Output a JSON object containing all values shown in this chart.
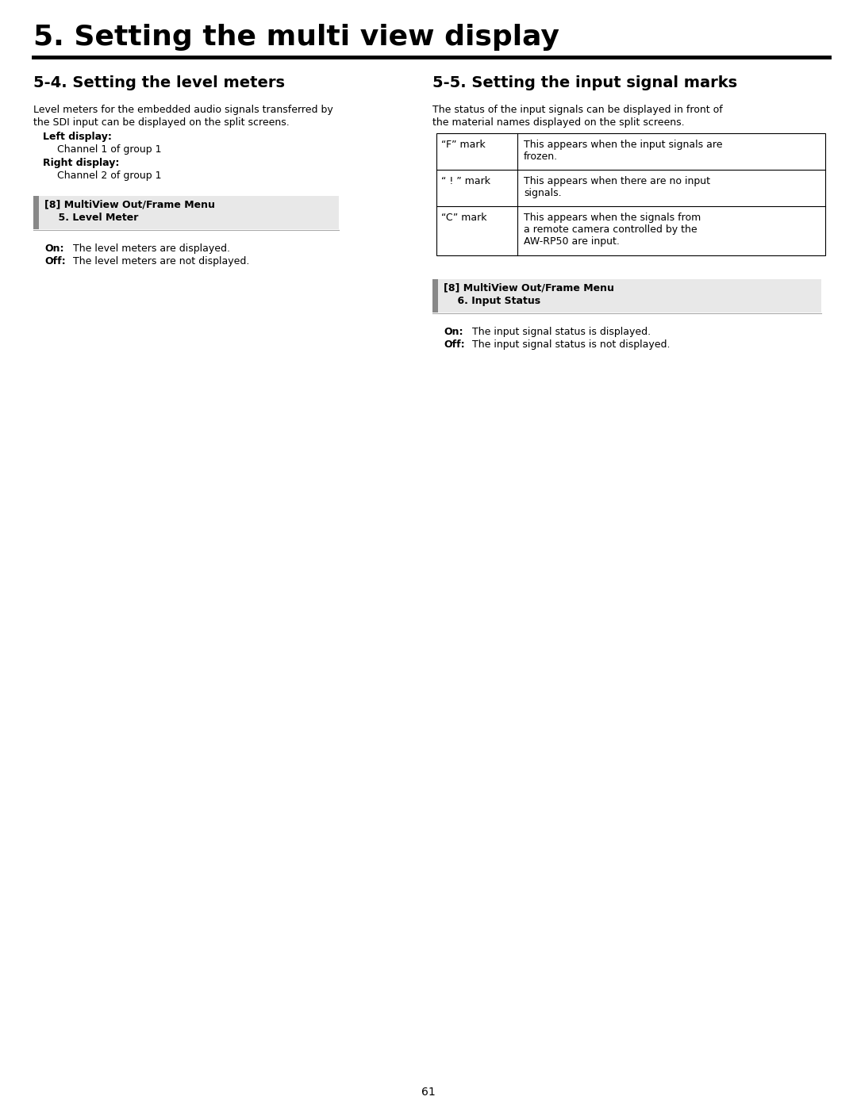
{
  "page_title": "5. Setting the multi view display",
  "page_number": "61",
  "background_color": "#ffffff",
  "section_left_title": "5-4. Setting the level meters",
  "section_left_body_line1": "Level meters for the embedded audio signals transferred by",
  "section_left_body_line2": "the SDI input can be displayed on the split screens.",
  "left_display_label": "Left display:",
  "left_display_value": "Channel 1 of group 1",
  "right_display_label": "Right display:",
  "right_display_value": "Channel 2 of group 1",
  "left_menu_line1": "[8] MultiView Out/Frame Menu",
  "left_menu_line2": "    5. Level Meter",
  "left_on_label": "On:",
  "left_on_text": "  The level meters are displayed.",
  "left_off_label": "Off:",
  "left_off_text": "  The level meters are not displayed.",
  "section_right_title": "5-5. Setting the input signal marks",
  "section_right_body_line1": "The status of the input signals can be displayed in front of",
  "section_right_body_line2": "the material names displayed on the split screens.",
  "table_rows": [
    {
      "mark": "“F” mark",
      "description_lines": [
        "This appears when the input signals are",
        "frozen."
      ]
    },
    {
      "mark": "“ ! ” mark",
      "description_lines": [
        "This appears when there are no input",
        "signals."
      ]
    },
    {
      "mark": "“C” mark",
      "description_lines": [
        "This appears when the signals from",
        "a remote camera controlled by the",
        "AW-RP50 are input."
      ]
    }
  ],
  "right_menu_line1": "[8] MultiView Out/Frame Menu",
  "right_menu_line2": "    6. Input Status",
  "right_on_label": "On:",
  "right_on_text": "  The input signal status is displayed.",
  "right_off_label": "Off:",
  "right_off_text": "  The input signal status is not displayed.",
  "title_fontsize": 26,
  "section_title_fontsize": 14,
  "body_fontsize": 9,
  "menu_fontsize": 9,
  "table_fontsize": 9
}
